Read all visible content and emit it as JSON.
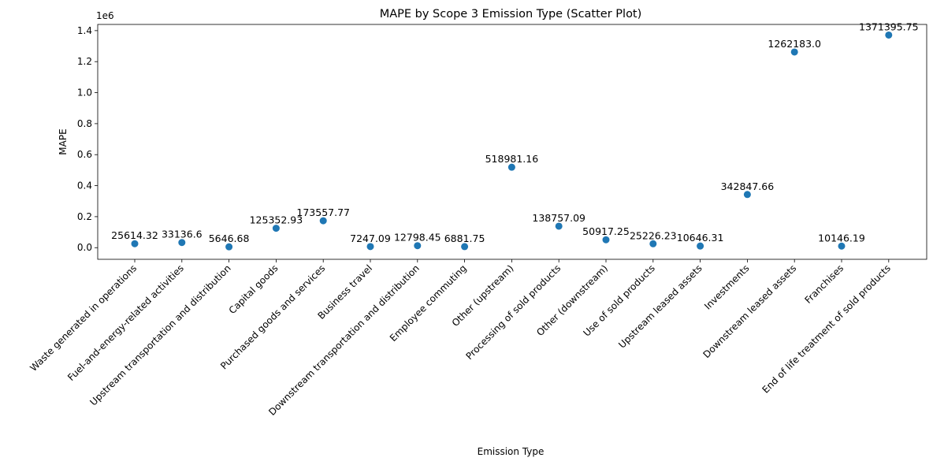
{
  "chart_data": {
    "type": "scatter",
    "title": "MAPE by Scope 3 Emission Type (Scatter Plot)",
    "xlabel": "Emission Type",
    "ylabel": "MAPE",
    "y_scale_label": "1e6",
    "ylim": [
      -75000,
      1440000
    ],
    "yticks": [
      0,
      200000,
      400000,
      600000,
      800000,
      1000000,
      1200000,
      1400000
    ],
    "ytick_labels": [
      "0.0",
      "0.2",
      "0.4",
      "0.6",
      "0.8",
      "1.0",
      "1.2",
      "1.4"
    ],
    "grid": false,
    "legend": "none",
    "marker_color": "#1f77b4",
    "categories": [
      "Waste generated in operations",
      "Fuel-and-energy-related activities",
      "Upstream transportation and distribution",
      "Capital goods",
      "Purchased goods and services",
      "Business travel",
      "Downstream transportation and distribution",
      "Employee commuting",
      "Other (upstream)",
      "Processing of sold products",
      "Other (downstream)",
      "Use of sold products",
      "Upstream leased assets",
      "Investments",
      "Downstream leased assets",
      "Franchises",
      "End of life treatment of sold products"
    ],
    "values": [
      25614.32,
      33136.6,
      5646.68,
      125352.93,
      173557.77,
      7247.09,
      12798.45,
      6881.75,
      518981.16,
      138757.09,
      50917.25,
      25226.23,
      10646.31,
      342847.66,
      1262183.0,
      10146.19,
      1371395.75
    ],
    "data_labels": [
      "25614.32",
      "33136.6",
      "5646.68",
      "125352.93",
      "173557.77",
      "7247.09",
      "12798.45",
      "6881.75",
      "518981.16",
      "138757.09",
      "50917.25",
      "25226.23",
      "10646.31",
      "342847.66",
      "1262183.0",
      "10146.19",
      "1371395.75"
    ]
  }
}
